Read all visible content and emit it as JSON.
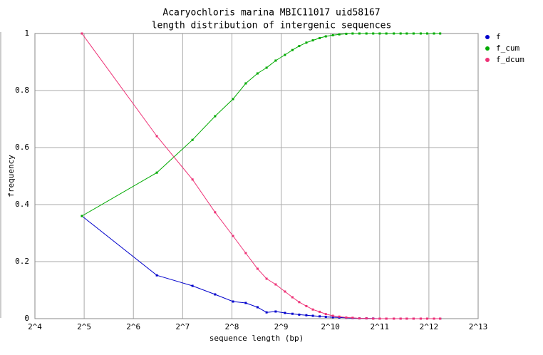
{
  "chart_data": {
    "type": "line",
    "title": "Acaryochloris marina MBIC11017 uid58167",
    "subtitle": "length distribution of intergenic sequences",
    "x_label": "sequence length (bp)",
    "y_label": "frequency",
    "xlog": true,
    "grid": true,
    "legend": "top-right",
    "xlim": [
      16,
      8192
    ],
    "xticks": [
      {
        "value": 16,
        "label": "2^4"
      },
      {
        "value": 32,
        "label": "2^5"
      },
      {
        "value": 64,
        "label": "2^6"
      },
      {
        "value": 128,
        "label": "2^7"
      },
      {
        "value": 256,
        "label": "2^8"
      },
      {
        "value": 512,
        "label": "2^9"
      },
      {
        "value": 1024,
        "label": "2^10"
      },
      {
        "value": 2048,
        "label": "2^11"
      },
      {
        "value": 4096,
        "label": "2^12"
      },
      {
        "value": 8192,
        "label": "2^13"
      }
    ],
    "ylim": [
      0,
      1
    ],
    "yticks": [
      0,
      0.2,
      0.4,
      0.6,
      0.8,
      1
    ],
    "x": [
      31,
      89,
      147,
      202,
      260,
      311,
      367,
      417,
      474,
      540,
      600,
      660,
      730,
      800,
      880,
      960,
      1060,
      1160,
      1280,
      1400,
      1540,
      1700,
      1870,
      2050,
      2250,
      2500,
      2750,
      3000,
      3300,
      3650,
      4000,
      4400,
      4800
    ],
    "series": [
      {
        "name": "f",
        "color": "#0000cc",
        "values": [
          0.36,
          0.152,
          0.115,
          0.085,
          0.06,
          0.055,
          0.04,
          0.022,
          0.025,
          0.02,
          0.017,
          0.014,
          0.012,
          0.01,
          0.008,
          0.006,
          0.005,
          0.004,
          0.003,
          0.002,
          0.001,
          0.001,
          0.0005,
          0,
          0,
          0,
          0,
          0,
          0,
          0,
          0,
          0,
          0
        ]
      },
      {
        "name": "f_cum",
        "color": "#00aa00",
        "values": [
          0.36,
          0.512,
          0.627,
          0.71,
          0.77,
          0.825,
          0.86,
          0.88,
          0.905,
          0.925,
          0.942,
          0.956,
          0.968,
          0.976,
          0.984,
          0.99,
          0.994,
          0.997,
          0.999,
          1,
          1,
          1,
          1,
          1,
          1,
          1,
          1,
          1,
          1,
          1,
          1,
          1,
          1
        ]
      },
      {
        "name": "f_dcum",
        "color": "#ee3377",
        "values": [
          1,
          0.64,
          0.488,
          0.373,
          0.29,
          0.23,
          0.175,
          0.14,
          0.12,
          0.095,
          0.075,
          0.058,
          0.044,
          0.032,
          0.024,
          0.016,
          0.01,
          0.007,
          0.004,
          0.003,
          0.001,
          0.001,
          0,
          0,
          0,
          0,
          0,
          0,
          0,
          0,
          0,
          0,
          0
        ]
      }
    ]
  }
}
